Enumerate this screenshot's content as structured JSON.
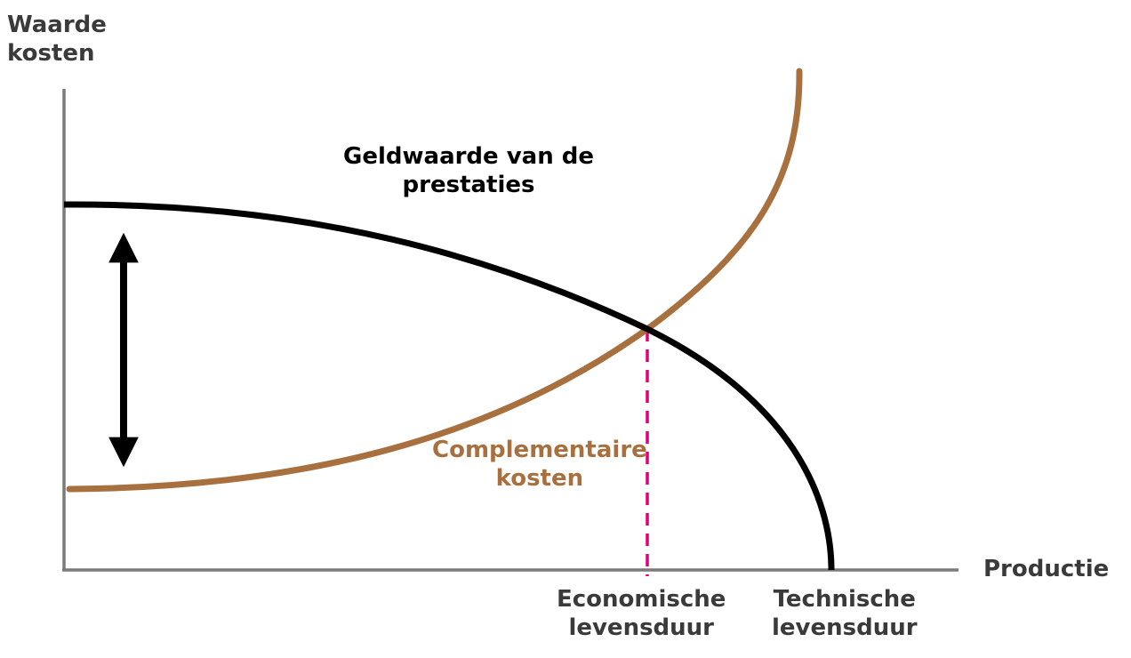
{
  "y_axis": {
    "label_line1": "Waarde",
    "label_line2": "kosten"
  },
  "x_axis": {
    "label": "Productie"
  },
  "curves": {
    "benefit": {
      "label_line1": "Geldwaarde van de",
      "label_line2": "prestaties",
      "color": "#000000"
    },
    "cost": {
      "label_line1": "Complementaire",
      "label_line2": "kosten",
      "color": "#a8703e"
    }
  },
  "markers": {
    "economic_life": {
      "label_line1": "Economische",
      "label_line2": "levensduur",
      "line_color": "#e0007a"
    },
    "technical_life": {
      "label_line1": "Technische",
      "label_line2": "levensduur"
    }
  },
  "colors": {
    "axis": "#7a7a7a",
    "text": "#3a3a3a"
  }
}
